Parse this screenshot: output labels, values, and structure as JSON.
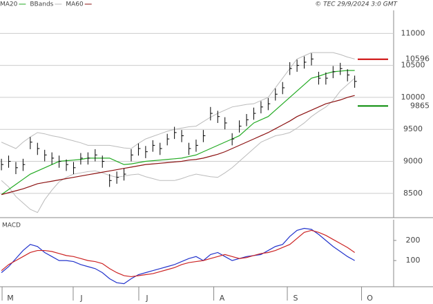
{
  "chart_data": [
    {
      "type": "ohlc",
      "legend": "top-left",
      "note": "© TEC 29/9/2024 3:0 GMT",
      "xlim": [
        -0.2,
        54.4
      ],
      "ylim": [
        8120,
        11360
      ],
      "yticks": [
        8500,
        9000,
        9500,
        10000,
        10500,
        11000
      ],
      "grid": true,
      "price": {
        "color": "#000000",
        "high": [
          9040,
          9090,
          8990,
          9040,
          9380,
          9290,
          9180,
          9140,
          9090,
          9030,
          8990,
          9130,
          9140,
          9190,
          9090,
          8800,
          8840,
          8890,
          9190,
          9280,
          9240,
          9330,
          9290,
          9430,
          9540,
          9490,
          9290,
          9340,
          9490,
          9850,
          9790,
          9690,
          9440,
          9640,
          9740,
          9840,
          9940,
          9990,
          10140,
          10240,
          10550,
          10590,
          10640,
          10690,
          10400,
          10390,
          10490,
          10540,
          10440,
          10340
        ],
        "low": [
          8860,
          8900,
          8800,
          8850,
          9190,
          9100,
          9000,
          8950,
          8900,
          8850,
          8800,
          8950,
          8950,
          9000,
          8900,
          8600,
          8650,
          8700,
          9000,
          9090,
          9050,
          9150,
          9100,
          9250,
          9350,
          9300,
          9100,
          9150,
          9300,
          9640,
          9600,
          9500,
          9250,
          9450,
          9550,
          9650,
          9750,
          9800,
          9950,
          10050,
          10350,
          10400,
          10450,
          10500,
          10200,
          10200,
          10300,
          10350,
          10250,
          10150
        ],
        "close": [
          8950,
          9000,
          8900,
          8950,
          9300,
          9200,
          9100,
          9050,
          9000,
          8950,
          8900,
          9050,
          9050,
          9100,
          9000,
          8700,
          8750,
          8800,
          9100,
          9200,
          9150,
          9250,
          9200,
          9350,
          9450,
          9400,
          9200,
          9250,
          9400,
          9750,
          9700,
          9600,
          9350,
          9550,
          9650,
          9750,
          9850,
          9900,
          10050,
          10150,
          10450,
          10500,
          10550,
          10600,
          10300,
          10300,
          10400,
          10450,
          10350,
          10250
        ]
      },
      "bands": {
        "name": "BBands",
        "color": "#bbbbbb",
        "upper": [
          9300,
          9250,
          9200,
          9300,
          9380,
          9450,
          9430,
          9400,
          9380,
          9350,
          9320,
          9290,
          9250,
          9250,
          9250,
          9250,
          9230,
          9210,
          9200,
          9280,
          9350,
          9390,
          9430,
          9470,
          9500,
          9520,
          9540,
          9550,
          9620,
          9690,
          9750,
          9800,
          9850,
          9870,
          9890,
          9900,
          9950,
          10000,
          10150,
          10300,
          10450,
          10600,
          10650,
          10700,
          10700,
          10700,
          10700,
          10670,
          10630,
          10600
        ],
        "lower": [
          8700,
          8600,
          8450,
          8350,
          8250,
          8200,
          8400,
          8550,
          8680,
          8750,
          8800,
          8820,
          8840,
          8850,
          8820,
          8780,
          8750,
          8770,
          8790,
          8800,
          8760,
          8730,
          8700,
          8700,
          8700,
          8730,
          8770,
          8800,
          8780,
          8760,
          8750,
          8820,
          8900,
          9000,
          9100,
          9200,
          9300,
          9350,
          9400,
          9420,
          9450,
          9520,
          9600,
          9700,
          9780,
          9850,
          9950,
          10100,
          10200,
          10300
        ]
      },
      "series": [
        {
          "name": "MA20",
          "color": "#22aa22",
          "values": [
            8480,
            8560,
            8640,
            8720,
            8800,
            8850,
            8900,
            8950,
            9000,
            9010,
            9020,
            9030,
            9050,
            9050,
            9050,
            9050,
            9000,
            8950,
            8960,
            8980,
            9000,
            9010,
            9020,
            9030,
            9040,
            9050,
            9075,
            9100,
            9150,
            9200,
            9250,
            9300,
            9350,
            9400,
            9500,
            9600,
            9650,
            9700,
            9800,
            9900,
            10000,
            10100,
            10200,
            10300,
            10330,
            10370,
            10400,
            10410,
            10420,
            10420
          ]
        },
        {
          "name": "MA60",
          "color": "#8b1010",
          "values": [
            8480,
            8510,
            8540,
            8570,
            8610,
            8650,
            8670,
            8690,
            8710,
            8730,
            8750,
            8770,
            8790,
            8810,
            8830,
            8850,
            8870,
            8890,
            8910,
            8930,
            8950,
            8960,
            8970,
            8980,
            8990,
            9000,
            9020,
            9030,
            9050,
            9080,
            9110,
            9150,
            9200,
            9250,
            9300,
            9350,
            9400,
            9450,
            9510,
            9570,
            9630,
            9700,
            9750,
            9800,
            9850,
            9900,
            9930,
            9960,
            10000,
            10030
          ]
        }
      ],
      "levels": [
        {
          "value": 10596,
          "color": "#cc0000"
        },
        {
          "value": 9865,
          "color": "#008800"
        }
      ]
    },
    {
      "type": "line",
      "title": "MACD",
      "xlim": [
        -0.2,
        54.4
      ],
      "ylim": [
        -30,
        303
      ],
      "yticks": [
        100,
        200
      ],
      "xticks": [
        {
          "value": 1.24,
          "label": "M"
        },
        {
          "value": 11.1,
          "label": "J"
        },
        {
          "value": 20.2,
          "label": "J"
        },
        {
          "value": 30.6,
          "label": "A"
        },
        {
          "value": 40.8,
          "label": "S"
        },
        {
          "value": 51.1,
          "label": "O"
        }
      ],
      "series": [
        {
          "color": "#2233cc",
          "values": [
            40,
            70,
            110,
            150,
            180,
            170,
            140,
            120,
            100,
            100,
            95,
            80,
            70,
            60,
            40,
            10,
            -10,
            -15,
            10,
            30,
            40,
            50,
            60,
            70,
            80,
            95,
            110,
            120,
            100,
            130,
            140,
            120,
            100,
            110,
            120,
            125,
            130,
            150,
            170,
            180,
            220,
            250,
            260,
            255,
            230,
            200,
            170,
            145,
            120,
            100
          ]
        },
        {
          "color": "#cc2222",
          "values": [
            50,
            80,
            100,
            120,
            140,
            150,
            150,
            145,
            135,
            125,
            120,
            110,
            100,
            95,
            85,
            60,
            40,
            25,
            20,
            25,
            30,
            35,
            45,
            55,
            65,
            80,
            90,
            95,
            100,
            110,
            120,
            130,
            120,
            110,
            115,
            125,
            135,
            140,
            150,
            165,
            180,
            210,
            240,
            250,
            240,
            225,
            205,
            185,
            165,
            140
          ]
        }
      ]
    }
  ]
}
